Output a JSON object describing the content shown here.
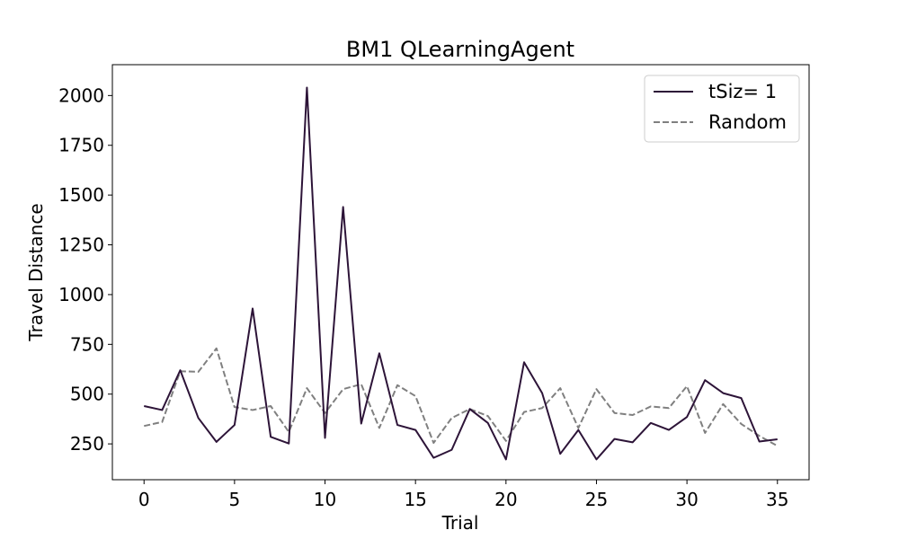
{
  "chart_data": {
    "type": "line",
    "title": "BM1  QLearningAgent",
    "xlabel": "Trial",
    "ylabel": "Travel Distance",
    "xlim": [
      -1.75,
      36.75
    ],
    "ylim": [
      70,
      2155
    ],
    "xticks": [
      0,
      5,
      10,
      15,
      20,
      25,
      30,
      35
    ],
    "xtick_labels": [
      "0",
      "5",
      "10",
      "15",
      "20",
      "25",
      "30",
      "35"
    ],
    "yticks": [
      250,
      500,
      750,
      1000,
      1250,
      1500,
      1750,
      2000
    ],
    "ytick_labels": [
      "250",
      "500",
      "750",
      "1000",
      "1250",
      "1500",
      "1750",
      "2000"
    ],
    "grid": false,
    "legend_position": "top-right",
    "x": [
      0,
      1,
      2,
      3,
      4,
      5,
      6,
      7,
      8,
      9,
      10,
      11,
      12,
      13,
      14,
      15,
      16,
      17,
      18,
      19,
      20,
      21,
      22,
      23,
      24,
      25,
      26,
      27,
      28,
      29,
      30,
      31,
      32,
      33,
      34,
      35
    ],
    "series": [
      {
        "name": "tSiz= 1",
        "color": "#2d1438",
        "dash": "solid",
        "values": [
          440,
          420,
          620,
          380,
          260,
          345,
          930,
          285,
          252,
          2040,
          280,
          1440,
          352,
          705,
          345,
          320,
          180,
          220,
          425,
          355,
          172,
          660,
          505,
          200,
          320,
          172,
          275,
          258,
          355,
          320,
          385,
          570,
          505,
          480,
          262,
          273
        ]
      },
      {
        "name": "Random",
        "color": "#808080",
        "dash": "dashed",
        "values": [
          340,
          360,
          615,
          612,
          730,
          435,
          420,
          440,
          310,
          530,
          405,
          525,
          550,
          330,
          545,
          490,
          255,
          380,
          425,
          390,
          265,
          410,
          430,
          530,
          330,
          525,
          405,
          395,
          438,
          430,
          540,
          305,
          450,
          350,
          290,
          240
        ]
      }
    ]
  }
}
